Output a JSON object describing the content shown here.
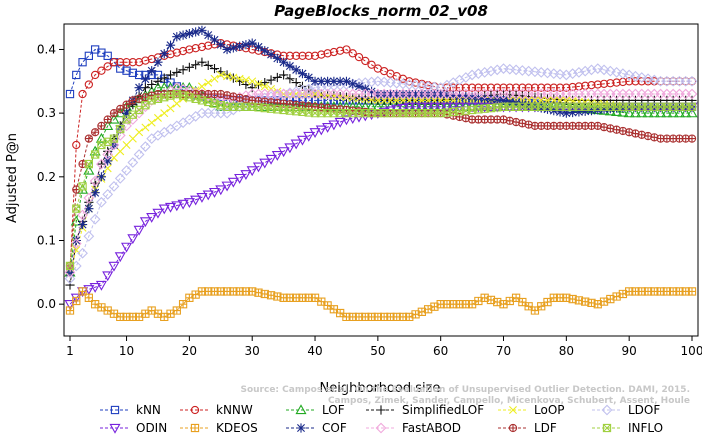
{
  "chart_data": {
    "type": "line",
    "title": "PageBlocks_norm_02_v08",
    "xlabel": "Neighborhood size",
    "ylabel": "Adjusted P@n",
    "xlim": [
      1,
      100
    ],
    "ylim": [
      -0.05,
      0.44
    ],
    "xticks": [
      1,
      10,
      20,
      30,
      40,
      50,
      60,
      70,
      80,
      90,
      100
    ],
    "yticks": [
      0.0,
      0.1,
      0.2,
      0.3,
      0.4
    ],
    "ytick_labels": [
      "0.0",
      "0.1",
      "0.2",
      "0.3",
      "0.4"
    ],
    "legend_position": "bottom",
    "watermark": [
      "Source: Campos et al. On the Evaluation of Unsupervised Outlier Detection. DAMI, 2015.",
      "Campos, Zimek, Sander, Campello, Micenkova, Schubert, Assent, Houle"
    ],
    "series": [
      {
        "name": "kNN",
        "color": "#1f3fbf",
        "marker": "square",
        "points": [
          [
            1,
            0.33
          ],
          [
            2,
            0.36
          ],
          [
            3,
            0.38
          ],
          [
            4,
            0.39
          ],
          [
            5,
            0.4
          ],
          [
            7,
            0.39
          ],
          [
            9,
            0.37
          ],
          [
            12,
            0.36
          ],
          [
            15,
            0.36
          ],
          [
            20,
            0.33
          ],
          [
            25,
            0.32
          ],
          [
            30,
            0.32
          ],
          [
            40,
            0.32
          ],
          [
            50,
            0.32
          ],
          [
            60,
            0.32
          ],
          [
            70,
            0.32
          ],
          [
            80,
            0.31
          ],
          [
            90,
            0.31
          ],
          [
            100,
            0.31
          ]
        ]
      },
      {
        "name": "kNNW",
        "color": "#cc2222",
        "marker": "circle",
        "points": [
          [
            1,
            0.05
          ],
          [
            2,
            0.25
          ],
          [
            3,
            0.33
          ],
          [
            5,
            0.36
          ],
          [
            8,
            0.38
          ],
          [
            12,
            0.38
          ],
          [
            16,
            0.39
          ],
          [
            20,
            0.4
          ],
          [
            25,
            0.41
          ],
          [
            30,
            0.4
          ],
          [
            35,
            0.39
          ],
          [
            40,
            0.39
          ],
          [
            45,
            0.4
          ],
          [
            50,
            0.37
          ],
          [
            55,
            0.35
          ],
          [
            60,
            0.34
          ],
          [
            65,
            0.34
          ],
          [
            70,
            0.34
          ],
          [
            80,
            0.34
          ],
          [
            90,
            0.35
          ],
          [
            100,
            0.35
          ]
        ]
      },
      {
        "name": "LOF",
        "color": "#22aa22",
        "marker": "triangle-up",
        "points": [
          [
            1,
            0.05
          ],
          [
            2,
            0.13
          ],
          [
            3,
            0.18
          ],
          [
            5,
            0.24
          ],
          [
            7,
            0.28
          ],
          [
            10,
            0.31
          ],
          [
            15,
            0.34
          ],
          [
            20,
            0.34
          ],
          [
            25,
            0.31
          ],
          [
            30,
            0.31
          ],
          [
            40,
            0.31
          ],
          [
            50,
            0.31
          ],
          [
            60,
            0.31
          ],
          [
            70,
            0.31
          ],
          [
            80,
            0.31
          ],
          [
            90,
            0.3
          ],
          [
            100,
            0.3
          ]
        ]
      },
      {
        "name": "SimplifiedLOF",
        "color": "#111111",
        "marker": "plus",
        "points": [
          [
            1,
            0.03
          ],
          [
            2,
            0.1
          ],
          [
            4,
            0.16
          ],
          [
            6,
            0.22
          ],
          [
            8,
            0.26
          ],
          [
            10,
            0.3
          ],
          [
            13,
            0.34
          ],
          [
            17,
            0.36
          ],
          [
            22,
            0.38
          ],
          [
            26,
            0.36
          ],
          [
            30,
            0.34
          ],
          [
            35,
            0.36
          ],
          [
            40,
            0.33
          ],
          [
            50,
            0.32
          ],
          [
            60,
            0.32
          ],
          [
            70,
            0.33
          ],
          [
            80,
            0.32
          ],
          [
            90,
            0.32
          ],
          [
            100,
            0.32
          ]
        ]
      },
      {
        "name": "LoOP",
        "color": "#eeee22",
        "marker": "x",
        "points": [
          [
            1,
            0.05
          ],
          [
            3,
            0.12
          ],
          [
            5,
            0.18
          ],
          [
            8,
            0.23
          ],
          [
            12,
            0.27
          ],
          [
            16,
            0.3
          ],
          [
            20,
            0.33
          ],
          [
            25,
            0.36
          ],
          [
            30,
            0.35
          ],
          [
            35,
            0.33
          ],
          [
            40,
            0.33
          ],
          [
            50,
            0.32
          ],
          [
            60,
            0.32
          ],
          [
            70,
            0.32
          ],
          [
            80,
            0.32
          ],
          [
            90,
            0.31
          ],
          [
            100,
            0.31
          ]
        ]
      },
      {
        "name": "LDOF",
        "color": "#c0c0ee",
        "marker": "diamond",
        "points": [
          [
            1,
            0.04
          ],
          [
            3,
            0.08
          ],
          [
            6,
            0.16
          ],
          [
            10,
            0.21
          ],
          [
            14,
            0.26
          ],
          [
            18,
            0.28
          ],
          [
            22,
            0.3
          ],
          [
            26,
            0.3
          ],
          [
            30,
            0.32
          ],
          [
            35,
            0.33
          ],
          [
            40,
            0.34
          ],
          [
            50,
            0.35
          ],
          [
            60,
            0.34
          ],
          [
            65,
            0.36
          ],
          [
            70,
            0.37
          ],
          [
            80,
            0.36
          ],
          [
            85,
            0.37
          ],
          [
            90,
            0.36
          ],
          [
            95,
            0.35
          ],
          [
            100,
            0.35
          ]
        ]
      },
      {
        "name": "ODIN",
        "color": "#7722dd",
        "marker": "triangle-down",
        "points": [
          [
            1,
            0.0
          ],
          [
            3,
            0.02
          ],
          [
            6,
            0.03
          ],
          [
            10,
            0.09
          ],
          [
            13,
            0.13
          ],
          [
            16,
            0.15
          ],
          [
            20,
            0.16
          ],
          [
            25,
            0.18
          ],
          [
            30,
            0.21
          ],
          [
            35,
            0.24
          ],
          [
            40,
            0.27
          ],
          [
            45,
            0.29
          ],
          [
            50,
            0.3
          ],
          [
            55,
            0.31
          ],
          [
            60,
            0.31
          ],
          [
            70,
            0.31
          ],
          [
            80,
            0.31
          ],
          [
            90,
            0.31
          ],
          [
            100,
            0.31
          ]
        ]
      },
      {
        "name": "KDEOS",
        "color": "#e8a020",
        "marker": "square-cross",
        "points": [
          [
            1,
            -0.01
          ],
          [
            3,
            0.02
          ],
          [
            5,
            0.0
          ],
          [
            7,
            -0.01
          ],
          [
            9,
            -0.02
          ],
          [
            12,
            -0.02
          ],
          [
            14,
            -0.01
          ],
          [
            16,
            -0.02
          ],
          [
            18,
            -0.01
          ],
          [
            20,
            0.01
          ],
          [
            22,
            0.02
          ],
          [
            25,
            0.02
          ],
          [
            30,
            0.02
          ],
          [
            35,
            0.01
          ],
          [
            40,
            0.01
          ],
          [
            45,
            -0.02
          ],
          [
            50,
            -0.02
          ],
          [
            55,
            -0.02
          ],
          [
            60,
            0.0
          ],
          [
            65,
            0.0
          ],
          [
            67,
            0.01
          ],
          [
            70,
            0.0
          ],
          [
            72,
            0.01
          ],
          [
            75,
            -0.01
          ],
          [
            78,
            0.01
          ],
          [
            80,
            0.01
          ],
          [
            85,
            0.0
          ],
          [
            90,
            0.02
          ],
          [
            95,
            0.02
          ],
          [
            100,
            0.02
          ]
        ]
      },
      {
        "name": "COF",
        "color": "#1a2a8a",
        "marker": "asterisk",
        "points": [
          [
            1,
            0.05
          ],
          [
            2,
            0.1
          ],
          [
            4,
            0.15
          ],
          [
            6,
            0.2
          ],
          [
            8,
            0.25
          ],
          [
            10,
            0.3
          ],
          [
            12,
            0.34
          ],
          [
            15,
            0.38
          ],
          [
            18,
            0.42
          ],
          [
            22,
            0.43
          ],
          [
            26,
            0.4
          ],
          [
            30,
            0.41
          ],
          [
            35,
            0.38
          ],
          [
            40,
            0.35
          ],
          [
            45,
            0.35
          ],
          [
            50,
            0.33
          ],
          [
            60,
            0.33
          ],
          [
            70,
            0.32
          ],
          [
            75,
            0.31
          ],
          [
            80,
            0.3
          ],
          [
            90,
            0.31
          ],
          [
            100,
            0.31
          ]
        ]
      },
      {
        "name": "FastABOD",
        "color": "#f0a8dc",
        "marker": "diamond",
        "points": [
          [
            1,
            0.05
          ],
          [
            3,
            0.14
          ],
          [
            6,
            0.22
          ],
          [
            10,
            0.28
          ],
          [
            14,
            0.32
          ],
          [
            18,
            0.34
          ],
          [
            22,
            0.33
          ],
          [
            26,
            0.32
          ],
          [
            30,
            0.33
          ],
          [
            40,
            0.33
          ],
          [
            50,
            0.33
          ],
          [
            60,
            0.33
          ],
          [
            70,
            0.33
          ],
          [
            80,
            0.33
          ],
          [
            90,
            0.33
          ],
          [
            100,
            0.33
          ]
        ]
      },
      {
        "name": "LDF",
        "color": "#aa3030",
        "marker": "circle-plus",
        "points": [
          [
            1,
            0.06
          ],
          [
            2,
            0.18
          ],
          [
            4,
            0.26
          ],
          [
            6,
            0.28
          ],
          [
            8,
            0.3
          ],
          [
            11,
            0.32
          ],
          [
            15,
            0.33
          ],
          [
            20,
            0.33
          ],
          [
            25,
            0.33
          ],
          [
            30,
            0.32
          ],
          [
            40,
            0.31
          ],
          [
            50,
            0.3
          ],
          [
            60,
            0.3
          ],
          [
            65,
            0.29
          ],
          [
            70,
            0.29
          ],
          [
            75,
            0.28
          ],
          [
            80,
            0.28
          ],
          [
            85,
            0.28
          ],
          [
            90,
            0.27
          ],
          [
            95,
            0.26
          ],
          [
            100,
            0.26
          ]
        ]
      },
      {
        "name": "INFLO",
        "color": "#a0d040",
        "marker": "square-x",
        "points": [
          [
            1,
            0.06
          ],
          [
            2,
            0.15
          ],
          [
            4,
            0.22
          ],
          [
            6,
            0.25
          ],
          [
            8,
            0.26
          ],
          [
            10,
            0.29
          ],
          [
            14,
            0.32
          ],
          [
            18,
            0.33
          ],
          [
            22,
            0.32
          ],
          [
            26,
            0.31
          ],
          [
            30,
            0.31
          ],
          [
            40,
            0.3
          ],
          [
            50,
            0.3
          ],
          [
            60,
            0.3
          ],
          [
            70,
            0.31
          ],
          [
            80,
            0.31
          ],
          [
            90,
            0.31
          ],
          [
            100,
            0.31
          ]
        ]
      }
    ]
  }
}
